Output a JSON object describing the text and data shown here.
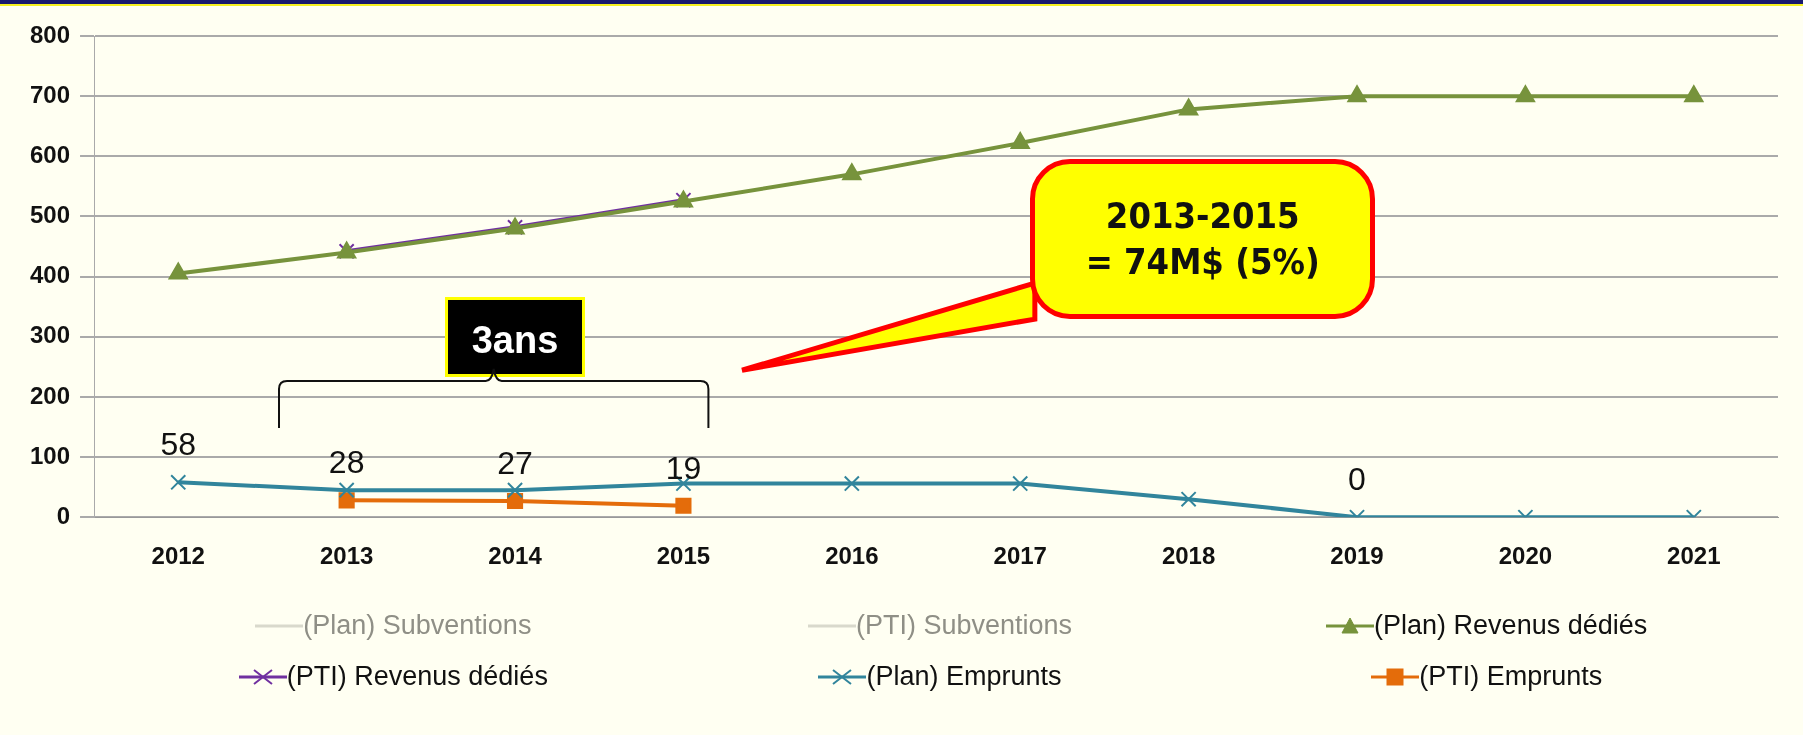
{
  "chart_data": {
    "type": "line",
    "categories": [
      "2012",
      "2013",
      "2014",
      "2015",
      "2016",
      "2017",
      "2018",
      "2019",
      "2020",
      "2021"
    ],
    "ylim": [
      0,
      800
    ],
    "yticks": [
      0,
      100,
      200,
      300,
      400,
      500,
      600,
      700,
      800
    ],
    "grid": "y",
    "legend": "bottom",
    "series": [
      {
        "name": "(Plan) Subventions",
        "color": "#d9d9cc",
        "marker": "none",
        "values": [
          null,
          null,
          null,
          null,
          null,
          null,
          null,
          null,
          null,
          null
        ]
      },
      {
        "name": "(PTI) Subventions",
        "color": "#d9d9cc",
        "marker": "none",
        "values": [
          null,
          null,
          null,
          null,
          null,
          null,
          null,
          null,
          null,
          null
        ]
      },
      {
        "name": "(Plan) Revenus dédiés",
        "color": "#77933c",
        "marker": "triangle",
        "values": [
          405,
          440,
          480,
          525,
          570,
          622,
          678,
          700,
          700,
          700
        ]
      },
      {
        "name": "(PTI) Revenus dédiés",
        "color": "#7030a0",
        "marker": "cross",
        "values": [
          null,
          442,
          482,
          527,
          null,
          null,
          null,
          null,
          null,
          null
        ]
      },
      {
        "name": "(Plan) Emprunts",
        "color": "#31859c",
        "marker": "cross",
        "values": [
          58,
          45,
          45,
          56,
          56,
          56,
          30,
          0,
          0,
          0
        ],
        "value_labels": [
          "58",
          null,
          null,
          null,
          null,
          null,
          null,
          "0",
          null,
          null
        ]
      },
      {
        "name": "(PTI) Emprunts",
        "color": "#e46c0a",
        "marker": "square",
        "values": [
          null,
          28,
          27,
          19,
          null,
          null,
          null,
          null,
          null,
          null
        ],
        "value_labels": [
          null,
          "28",
          "27",
          "19",
          null,
          null,
          null,
          null,
          null,
          null
        ]
      }
    ],
    "annotations": [
      "3ans",
      "2013-2015\n= 74M$ (5%)"
    ]
  }
}
